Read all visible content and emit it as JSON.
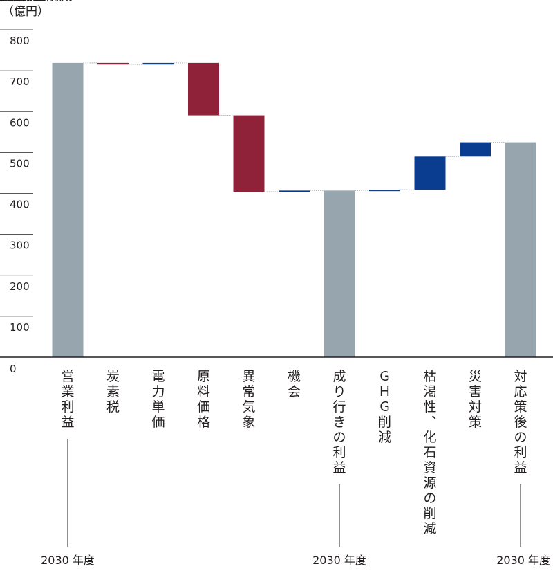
{
  "chart_data": {
    "type": "waterfall",
    "unit_label": "（億円）",
    "yticks": [
      0,
      100,
      200,
      300,
      400,
      500,
      600,
      700,
      800
    ],
    "ylim": [
      0,
      800
    ],
    "categories": [
      "営業利益",
      "炭素税",
      "電力単価",
      "原料価格",
      "異常気象",
      "機会",
      "成り行きの利益",
      "ＧＨＧ削減",
      "枯渇性、化石資源の削減",
      "災害対策",
      "対応策後の利益"
    ],
    "bars": [
      {
        "label": "営業利益",
        "kind": "total",
        "start": 0,
        "end": 719
      },
      {
        "label": "炭素税",
        "kind": "decrease",
        "start": 719,
        "end": 715
      },
      {
        "label": "電力単価",
        "kind": "increase",
        "start": 715,
        "end": 719
      },
      {
        "label": "原料価格",
        "kind": "decrease",
        "start": 719,
        "end": 591
      },
      {
        "label": "異常気象",
        "kind": "decrease",
        "start": 591,
        "end": 404
      },
      {
        "label": "機会",
        "kind": "increase",
        "start": 404,
        "end": 407
      },
      {
        "label": "成り行きの利益",
        "kind": "total",
        "start": 0,
        "end": 407
      },
      {
        "label": "ＧＨＧ削減",
        "kind": "increase",
        "start": 407,
        "end": 409
      },
      {
        "label": "枯渇性、化石資源の削減",
        "kind": "increase",
        "start": 409,
        "end": 490
      },
      {
        "label": "災害対策",
        "kind": "increase",
        "start": 490,
        "end": 525
      },
      {
        "label": "対応策後の利益",
        "kind": "total",
        "start": 0,
        "end": 525
      }
    ],
    "colors": {
      "total": "#97a6ae",
      "decrease": "#8f2239",
      "increase": "#0a3d8f",
      "connector": "#aab4ba",
      "axis": "#231f20",
      "grid": "#231f20"
    },
    "year_labels": [
      {
        "bar": 0,
        "text": "2030 年度"
      },
      {
        "bar": 6,
        "text": "2030 年度"
      },
      {
        "bar": 10,
        "text": "2030 年度"
      }
    ]
  }
}
